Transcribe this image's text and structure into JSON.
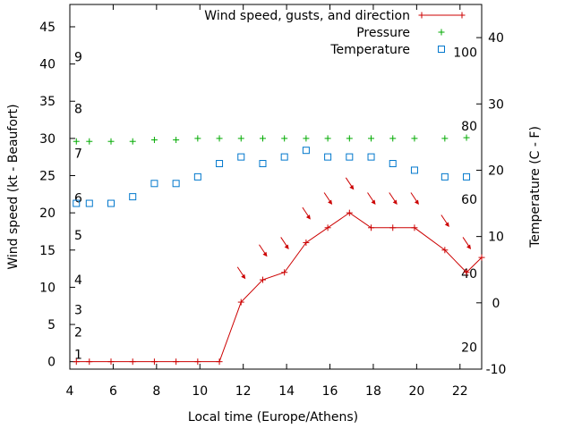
{
  "chart_data": {
    "type": "line",
    "xlabel": "Local time (Europe/Athens)",
    "ylabel_left": "Wind speed (kt - Beaufort)",
    "ylabel_right": "Temperature (C - F)",
    "xlim": [
      4,
      23
    ],
    "x_ticks": [
      "4",
      "6",
      "8",
      "10",
      "12",
      "14",
      "16",
      "18",
      "20",
      "22"
    ],
    "ylim_left": [
      -1,
      48
    ],
    "y_ticks_left": [
      "0",
      "5",
      "10",
      "15",
      "20",
      "25",
      "30",
      "35",
      "40",
      "45"
    ],
    "ylim_right": [
      -10,
      45
    ],
    "y_ticks_right": [
      "-10",
      "0",
      "10",
      "20",
      "30",
      "40"
    ],
    "beaufort_labels": [
      {
        "label": "1",
        "kt": 1
      },
      {
        "label": "2",
        "kt": 4
      },
      {
        "label": "3",
        "kt": 7
      },
      {
        "label": "4",
        "kt": 11
      },
      {
        "label": "5",
        "kt": 17
      },
      {
        "label": "6",
        "kt": 22
      },
      {
        "label": "7",
        "kt": 28
      },
      {
        "label": "8",
        "kt": 34
      },
      {
        "label": "9",
        "kt": 41
      }
    ],
    "fahrenheit_labels": [
      {
        "label": "20",
        "c": -6.7
      },
      {
        "label": "40",
        "c": 4.4
      },
      {
        "label": "60",
        "c": 15.6
      },
      {
        "label": "80",
        "c": 26.7
      },
      {
        "label": "100",
        "c": 37.8
      }
    ],
    "series": [
      {
        "name": "Wind speed, gusts, and direction",
        "color": "#cc0000",
        "axis": "left",
        "marker": "plus-line",
        "x": [
          4.3,
          4.9,
          5.9,
          6.9,
          7.9,
          8.9,
          9.9,
          10.9,
          11.9,
          12.9,
          13.9,
          14.9,
          15.9,
          16.9,
          17.9,
          18.9,
          19.9,
          21.3,
          22.3,
          23.0
        ],
        "y": [
          0,
          0,
          0,
          0,
          0,
          0,
          0,
          0,
          8,
          11,
          12,
          16,
          18,
          20,
          18,
          18,
          18,
          15,
          12,
          14
        ]
      },
      {
        "name": "Pressure",
        "color": "#00aa00",
        "axis": "left",
        "marker": "plus",
        "x": [
          4.3,
          4.9,
          5.9,
          6.9,
          7.9,
          8.9,
          9.9,
          10.9,
          11.9,
          12.9,
          13.9,
          14.9,
          15.9,
          16.9,
          17.9,
          18.9,
          19.9,
          21.3,
          22.3
        ],
        "y": [
          29.6,
          29.6,
          29.6,
          29.6,
          29.8,
          29.8,
          30,
          30,
          30,
          30,
          30,
          30,
          30,
          30,
          30,
          30,
          30,
          30,
          30.1
        ]
      },
      {
        "name": "Temperature",
        "color": "#0077cc",
        "axis": "right",
        "marker": "square",
        "x": [
          4.3,
          4.9,
          5.9,
          6.9,
          7.9,
          8.9,
          9.9,
          10.9,
          11.9,
          12.9,
          13.9,
          14.9,
          15.9,
          16.9,
          17.9,
          18.9,
          19.9,
          21.3,
          22.3
        ],
        "y": [
          15,
          15,
          15,
          16,
          18,
          18,
          19,
          21,
          22,
          21,
          22,
          23,
          22,
          22,
          22,
          21,
          20,
          19,
          19
        ]
      }
    ],
    "wind_direction_arrows": {
      "x": [
        11.9,
        12.9,
        13.9,
        14.9,
        15.9,
        16.9,
        17.9,
        18.9,
        19.9,
        21.3,
        22.3
      ],
      "y_kt": [
        12,
        15,
        16,
        20,
        22,
        24,
        22,
        22,
        22,
        19,
        16
      ]
    },
    "legend_position": "top-right"
  }
}
